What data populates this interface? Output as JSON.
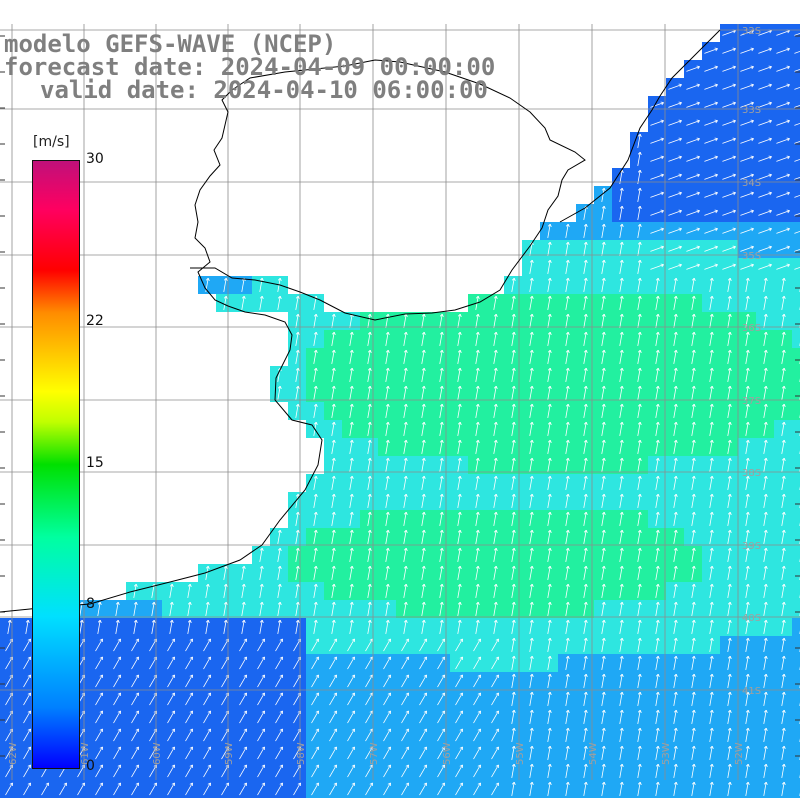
{
  "title": {
    "line1": "modelo GEFS-WAVE (NCEP)",
    "line2": "forecast date: 2024-04-09 00:00:00",
    "line3": "valid date: 2024-04-10 06:00:00"
  },
  "colorbar": {
    "units": "[m/s]",
    "min": 0,
    "max": 30,
    "ticks": [
      "30",
      "22",
      "15",
      "8",
      "0"
    ],
    "tick_values": [
      30,
      22,
      15,
      8,
      0
    ],
    "colors": [
      "#0000ff",
      "#0080ff",
      "#00e0ff",
      "#00ffa0",
      "#00e000",
      "#ffff00",
      "#ff8c00",
      "#ff0000",
      "#c0107a"
    ]
  },
  "latitude_labels": [
    "32S",
    "33S",
    "34S",
    "35S",
    "36S",
    "37S",
    "38S",
    "39S",
    "40S",
    "41S"
  ],
  "longitude_labels": [
    "62W",
    "61W",
    "60W",
    "59W",
    "58W",
    "57W",
    "56W",
    "55W",
    "54W",
    "53W",
    "52W"
  ],
  "map": {
    "field": "wind speed",
    "ocean_colors": {
      "weak": "#1a66f0",
      "light": "#1fa8f5",
      "moderate": "#2ee6e0",
      "strong": "#22f0a0",
      "land": "#ffffff"
    },
    "wind_arrow_color": "#ffffff",
    "grid_color": "#8c8c8c",
    "coast_color": "#000000"
  }
}
